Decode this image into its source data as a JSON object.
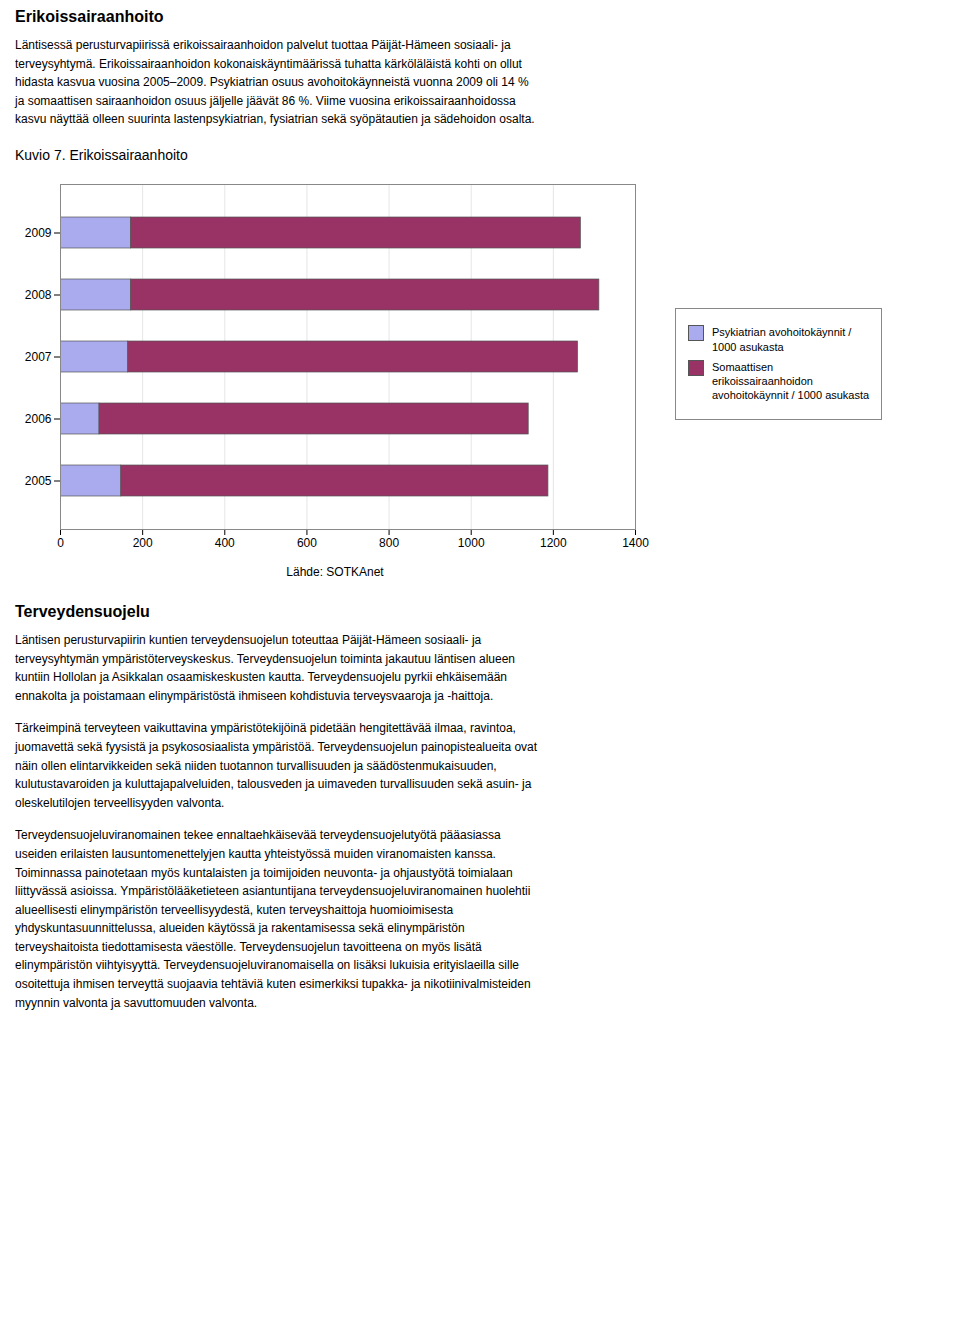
{
  "chart_data": {
    "type": "bar",
    "title": "Kuvio 7. Erikoissairaanhoito",
    "orientation": "horizontal",
    "stacked": true,
    "categories": [
      "2009",
      "2008",
      "2007",
      "2006",
      "2005"
    ],
    "series": [
      {
        "name": "Psykiatrian avohoitokäynnit /\n1000 asukasta",
        "color": "#aaaaee",
        "values": [
          172,
          172,
          165,
          95,
          148
        ]
      },
      {
        "name": "Somaattisen\nerikoissairaanhoidon\navohoitokäynnit / 1000 asukasta",
        "color": "#993366",
        "values": [
          1095,
          1140,
          1095,
          1045,
          1040
        ]
      }
    ],
    "xlim": [
      0,
      1400
    ],
    "xticks": [
      0,
      200,
      400,
      600,
      800,
      1000,
      1200,
      1400
    ],
    "grid": true,
    "legend": "right",
    "annotations": [
      "Erikoissairaanhoito",
      "Läntisessä perusturvapiirissä erikoissairaanhoidon palvelut tuottaa Päijät-Hämeen sosiaali- ja\nterveysyhtymä. Erikoissairaanhoidon kokonaiskäyntimäärissä tuhatta kärköläläistä kohti on ollut\nhidasta kasvua vuosina 2005–2009. Psykiatrian osuus avohoitokäynneistä vuonna 2009 oli 14 %\nja somaattisen sairaanhoidon osuus jäljelle jäävät 86 %. Viime vuosina erikoissairaanhoidossa\nkasvu näyttää olleen suurinta lastenpsykiatrian, fysiatrian sekä syöpätautien ja sädehoidon osalta.",
      "Lähde: SOTKAnet",
      "Terveydensuojelu",
      "Läntisen perusturvapiirin kuntien terveydensuojelun toteuttaa Päijät-Hämeen sosiaali- ja\nterveysyhtymän ympäristöterveyskeskus. Terveydensuojelun toiminta jakautuu läntisen alueen\nkuntiin Hollolan ja Asikkalan osaamiskeskusten kautta. Terveydensuojelu pyrkii ehkäisemään\nennakolta ja poistamaan elinympäristöstä ihmiseen kohdistuvia terveysvaaroja ja -haittoja.",
      "Tärkeimpinä terveyteen vaikuttavina ympäristötekijöinä pidetään hengitettävää ilmaa, ravintoa,\njuomavettä sekä fyysistä ja psykososiaalista ympäristöä. Terveydensuojelun painopistealueita ovat\nnäin ollen elintarvikkeiden sekä niiden tuotannon turvallisuuden ja säädöstenmukaisuuden,\nkulutustavaroiden ja kuluttajapalveluiden, talousveden ja uimaveden turvallisuuden sekä asuin- ja\noleskelutilojen terveellisyyden valvonta.",
      "Terveydensuojeluviranomainen tekee ennaltaehkäisevää terveydensuojelutyötä pääasiassa\nuseiden erilaisten lausuntomenettelyjen kautta yhteistyössä muiden viranomaisten kanssa.\nToiminnassa painotetaan myös kuntalaisten ja toimijoiden neuvonta- ja ohjaustyötä toimialaan\nliittyvässä asioissa. Ympäristölääketieteen asiantuntijana terveydensuojeluviranomainen huolehtii\nalueellisesti elinympäristön terveellisyydestä, kuten terveyshaittoja huomioimisesta\nyhdyskuntasuunnittelussa, alueiden käytössä ja rakentamisessa sekä elinympäristön\nterveyshaitoista tiedottamisesta väestölle. Terveydensuojelun tavoitteena on myös lisätä\nelinympäristön viihtyisyyttä. Terveydensuojeluviranomaisella on lisäksi lukuisia erityislaeilla sille\nosoitettuja ihmisen terveyttä suojaavia tehtäviä kuten esimerkiksi tupakka- ja nikotiinivalmisteiden\nmyynnin valvonta ja savuttomuuden valvonta."
    ]
  }
}
